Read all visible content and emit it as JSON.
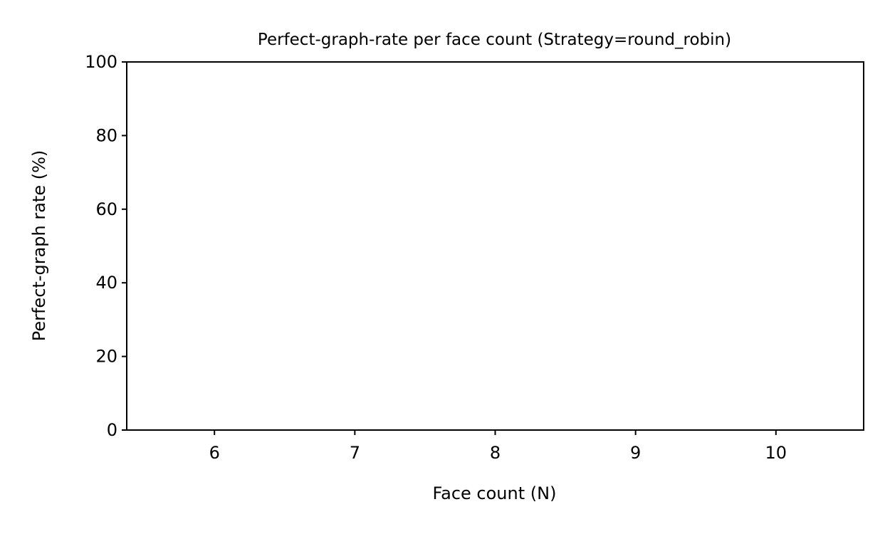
{
  "chart_data": {
    "type": "bar",
    "title": "Perfect-graph-rate per face count (Strategy=round_robin)",
    "xlabel": "Face count (N)",
    "ylabel": "Perfect-graph rate (%)",
    "x": [
      6,
      7,
      8,
      9,
      10
    ],
    "values": [
      0,
      0,
      0,
      0,
      0
    ],
    "xlim": [
      5.375,
      10.625
    ],
    "ylim": [
      0,
      100
    ],
    "xticks": [
      6,
      7,
      8,
      9,
      10
    ],
    "yticks": [
      0,
      20,
      40,
      60,
      80,
      100
    ],
    "xtick_labels": [
      "6",
      "7",
      "8",
      "9",
      "10"
    ],
    "ytick_labels": [
      "0",
      "20",
      "40",
      "60",
      "80",
      "100"
    ],
    "grid": false,
    "legend": "none",
    "colors": {
      "bar": "#1f77b4",
      "axes": "#000000",
      "background": "#ffffff"
    }
  }
}
